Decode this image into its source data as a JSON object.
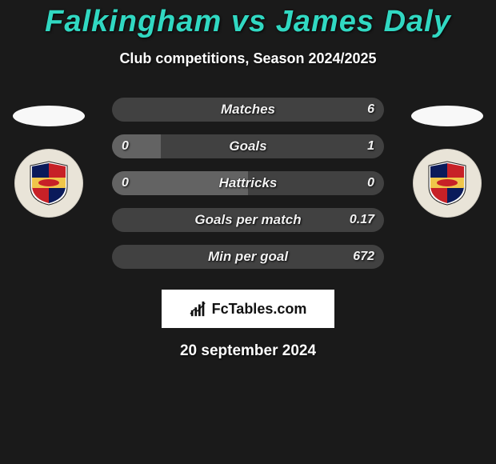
{
  "title_color": "#31d8c2",
  "player_left": "Falkingham",
  "vs_text": "vs",
  "player_right": "James Daly",
  "subtitle": "Club competitions, Season 2024/2025",
  "brand": "FcTables.com",
  "date_text": "20 september 2024",
  "crest": {
    "ring_bg": "#e9e4d8",
    "quad_tl": "#0a1a5a",
    "quad_tr": "#c72127",
    "quad_bl": "#c72127",
    "quad_br": "#0a1a5a",
    "band_bg": "#f0c64a",
    "band_animal": "#c72127"
  },
  "bars": {
    "left_seg_bg": "#636363",
    "right_seg_bg": "#414141",
    "rows": [
      {
        "label": "Matches",
        "left": "",
        "right": "6",
        "left_pct": 0
      },
      {
        "label": "Goals",
        "left": "0",
        "right": "1",
        "left_pct": 18
      },
      {
        "label": "Hattricks",
        "left": "0",
        "right": "0",
        "left_pct": 50
      },
      {
        "label": "Goals per match",
        "left": "",
        "right": "0.17",
        "left_pct": 0
      },
      {
        "label": "Min per goal",
        "left": "",
        "right": "672",
        "left_pct": 0
      }
    ]
  }
}
